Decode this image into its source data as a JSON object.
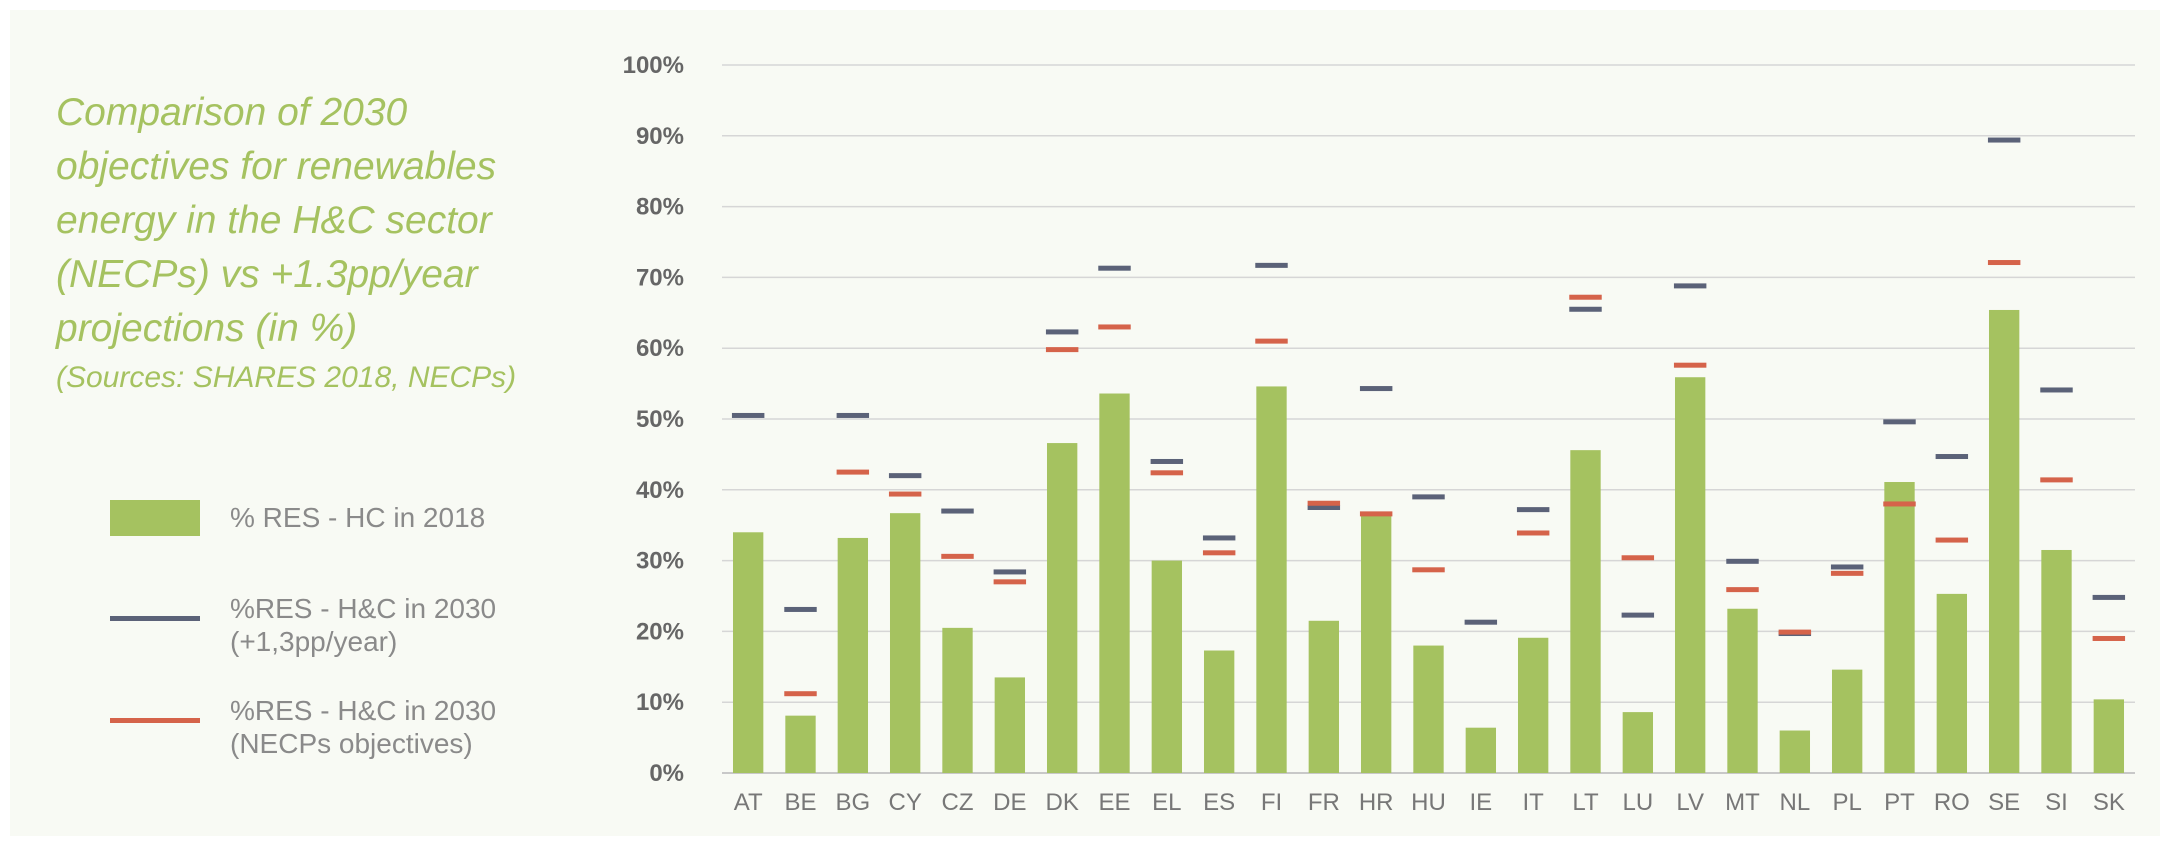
{
  "chart_data": {
    "type": "bar",
    "title": "Comparison of 2030 objectives for renewables energy in the H&C sector (NECPs) vs +1.3pp/year projections (in %)",
    "subtitle": "(Sources: SHARES 2018, NECPs)",
    "ylim": [
      0,
      100
    ],
    "yticks": [
      "0%",
      "10%",
      "20%",
      "30%",
      "40%",
      "50%",
      "60%",
      "70%",
      "80%",
      "90%",
      "100%"
    ],
    "grid": true,
    "legend_position": "left",
    "categories": [
      "AT",
      "BE",
      "BG",
      "CY",
      "CZ",
      "DE",
      "DK",
      "EE",
      "EL",
      "ES",
      "FI",
      "FR",
      "HR",
      "HU",
      "IE",
      "IT",
      "LT",
      "LU",
      "LV",
      "MT",
      "NL",
      "PL",
      "PT",
      "RO",
      "SE",
      "SI",
      "SK"
    ],
    "series": [
      {
        "name": "% RES - HC in 2018",
        "kind": "bar",
        "color": "#a5c260",
        "values": [
          34,
          8.1,
          33.2,
          36.7,
          20.5,
          13.5,
          46.6,
          53.6,
          30,
          17.3,
          54.6,
          21.5,
          36.8,
          18,
          6.4,
          19.1,
          45.6,
          8.6,
          55.9,
          23.2,
          6,
          14.6,
          41.1,
          25.3,
          65.4,
          31.5,
          10.4
        ]
      },
      {
        "name": "%RES - H&C in 2030\n(+1,3pp/year)",
        "kind": "marker",
        "color": "#5b6278",
        "values": [
          50.5,
          23.1,
          50.5,
          42,
          37,
          28.4,
          62.3,
          71.3,
          44,
          33.2,
          71.7,
          37.5,
          54.3,
          39,
          21.3,
          37.2,
          65.5,
          22.3,
          68.8,
          29.9,
          19.7,
          29.1,
          49.6,
          44.7,
          89.4,
          54.1,
          24.8
        ]
      },
      {
        "name": "%RES - H&C in 2030\n(NECPs objectives)",
        "kind": "marker",
        "color": "#d5634a",
        "values": [
          null,
          11.2,
          42.5,
          39.4,
          30.6,
          27,
          59.8,
          63,
          42.4,
          31.1,
          61,
          38.1,
          36.6,
          28.7,
          null,
          33.9,
          67.2,
          30.4,
          57.6,
          25.9,
          19.9,
          28.2,
          38,
          32.9,
          72.1,
          41.4,
          19
        ]
      }
    ]
  }
}
